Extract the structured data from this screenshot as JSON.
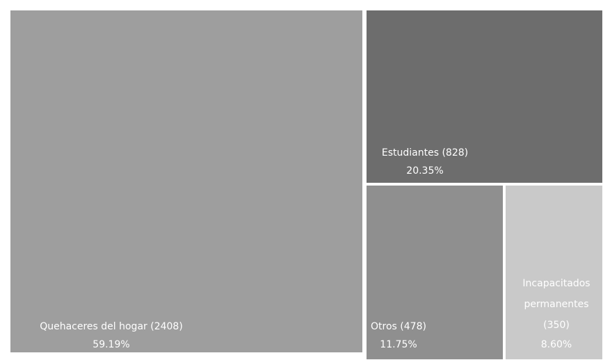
{
  "chart_data": {
    "type": "treemap",
    "title": "",
    "nodes": [
      {
        "name": "Quehaceres del hogar",
        "value": 2408,
        "percent": "59.19%",
        "label_lines": [
          "Quehaceres del hogar (2408)"
        ],
        "percent_label": "59.19%",
        "color": "#9e9e9e"
      },
      {
        "name": "Estudiantes",
        "value": 828,
        "percent": "20.35%",
        "label_lines": [
          "Estudiantes (828)"
        ],
        "percent_label": "20.35%",
        "color": "#6d6d6d"
      },
      {
        "name": "Otros",
        "value": 478,
        "percent": "11.75%",
        "label_lines": [
          "Otros (478)"
        ],
        "percent_label": "11.75%",
        "color": "#8f8f8f"
      },
      {
        "name": "Incapacitados permanentes",
        "value": 350,
        "percent": "8.60%",
        "label_lines": [
          "Incapacitados",
          "permanentes",
          "(350)"
        ],
        "percent_label": "8.60%",
        "color": "#c9c9c9"
      }
    ]
  }
}
